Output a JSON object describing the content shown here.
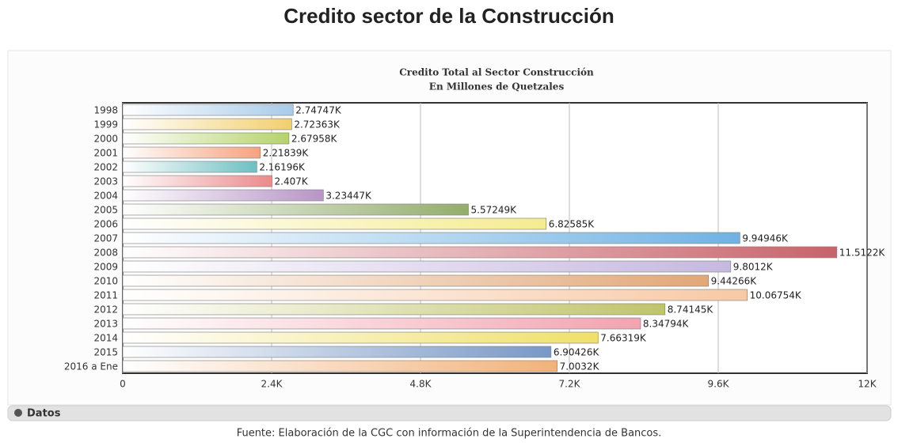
{
  "page_title": "Credito sector de la Construcción",
  "chart_data": {
    "type": "hbar",
    "title": [
      "Credito Total al Sector Construcción",
      "En Millones de Quetzales"
    ],
    "categories": [
      "1998",
      "1999",
      "2000",
      "2001",
      "2002",
      "2003",
      "2004",
      "2005",
      "2006",
      "2007",
      "2008",
      "2009",
      "2010",
      "2011",
      "2012",
      "2013",
      "2014",
      "2015",
      "2016 a Ene"
    ],
    "values": [
      2747.47,
      2723.63,
      2679.58,
      2218.39,
      2161.96,
      2407,
      3234.47,
      5572.49,
      6825.85,
      9949.46,
      11512.2,
      9801.2,
      9442.66,
      10067.54,
      8741.45,
      8347.94,
      7663.19,
      6904.26,
      7003.2
    ],
    "value_labels": [
      "2.74747K",
      "2.72363K",
      "2.67958K",
      "2.21839K",
      "2.16196K",
      "2.407K",
      "3.23447K",
      "5.57249K",
      "6.82585K",
      "9.94946K",
      "11.5122K",
      "9.8012K",
      "9.44266K",
      "10.06754K",
      "8.74145K",
      "8.34794K",
      "7.66319K",
      "6.90426K",
      "7.0032K"
    ],
    "colors": [
      "#a9cbe8",
      "#f2cf6e",
      "#b5d36a",
      "#f6a27e",
      "#6fbfc1",
      "#ec8a8a",
      "#b795c6",
      "#93ad6c",
      "#f4ec90",
      "#6fb2e3",
      "#c9626a",
      "#c6b8e0",
      "#e1a777",
      "#f8c9a5",
      "#c0c46a",
      "#f2a3b0",
      "#efe06a",
      "#7898c6",
      "#f2b27a"
    ],
    "xlim": [
      0,
      12000
    ],
    "xticks": [
      0,
      {
        "value": 2400,
        "label": "2.4K"
      },
      {
        "value": 4800,
        "label": "4.8K"
      },
      {
        "value": 7200,
        "label": "7.2K"
      },
      {
        "value": 9600,
        "label": "9.6K"
      },
      {
        "value": 12000,
        "label": "12K"
      }
    ],
    "grid": true
  },
  "panel_label": "Datos",
  "footer": "Fuente: Elaboración de la CGC con información de la Superintendencia de Bancos."
}
